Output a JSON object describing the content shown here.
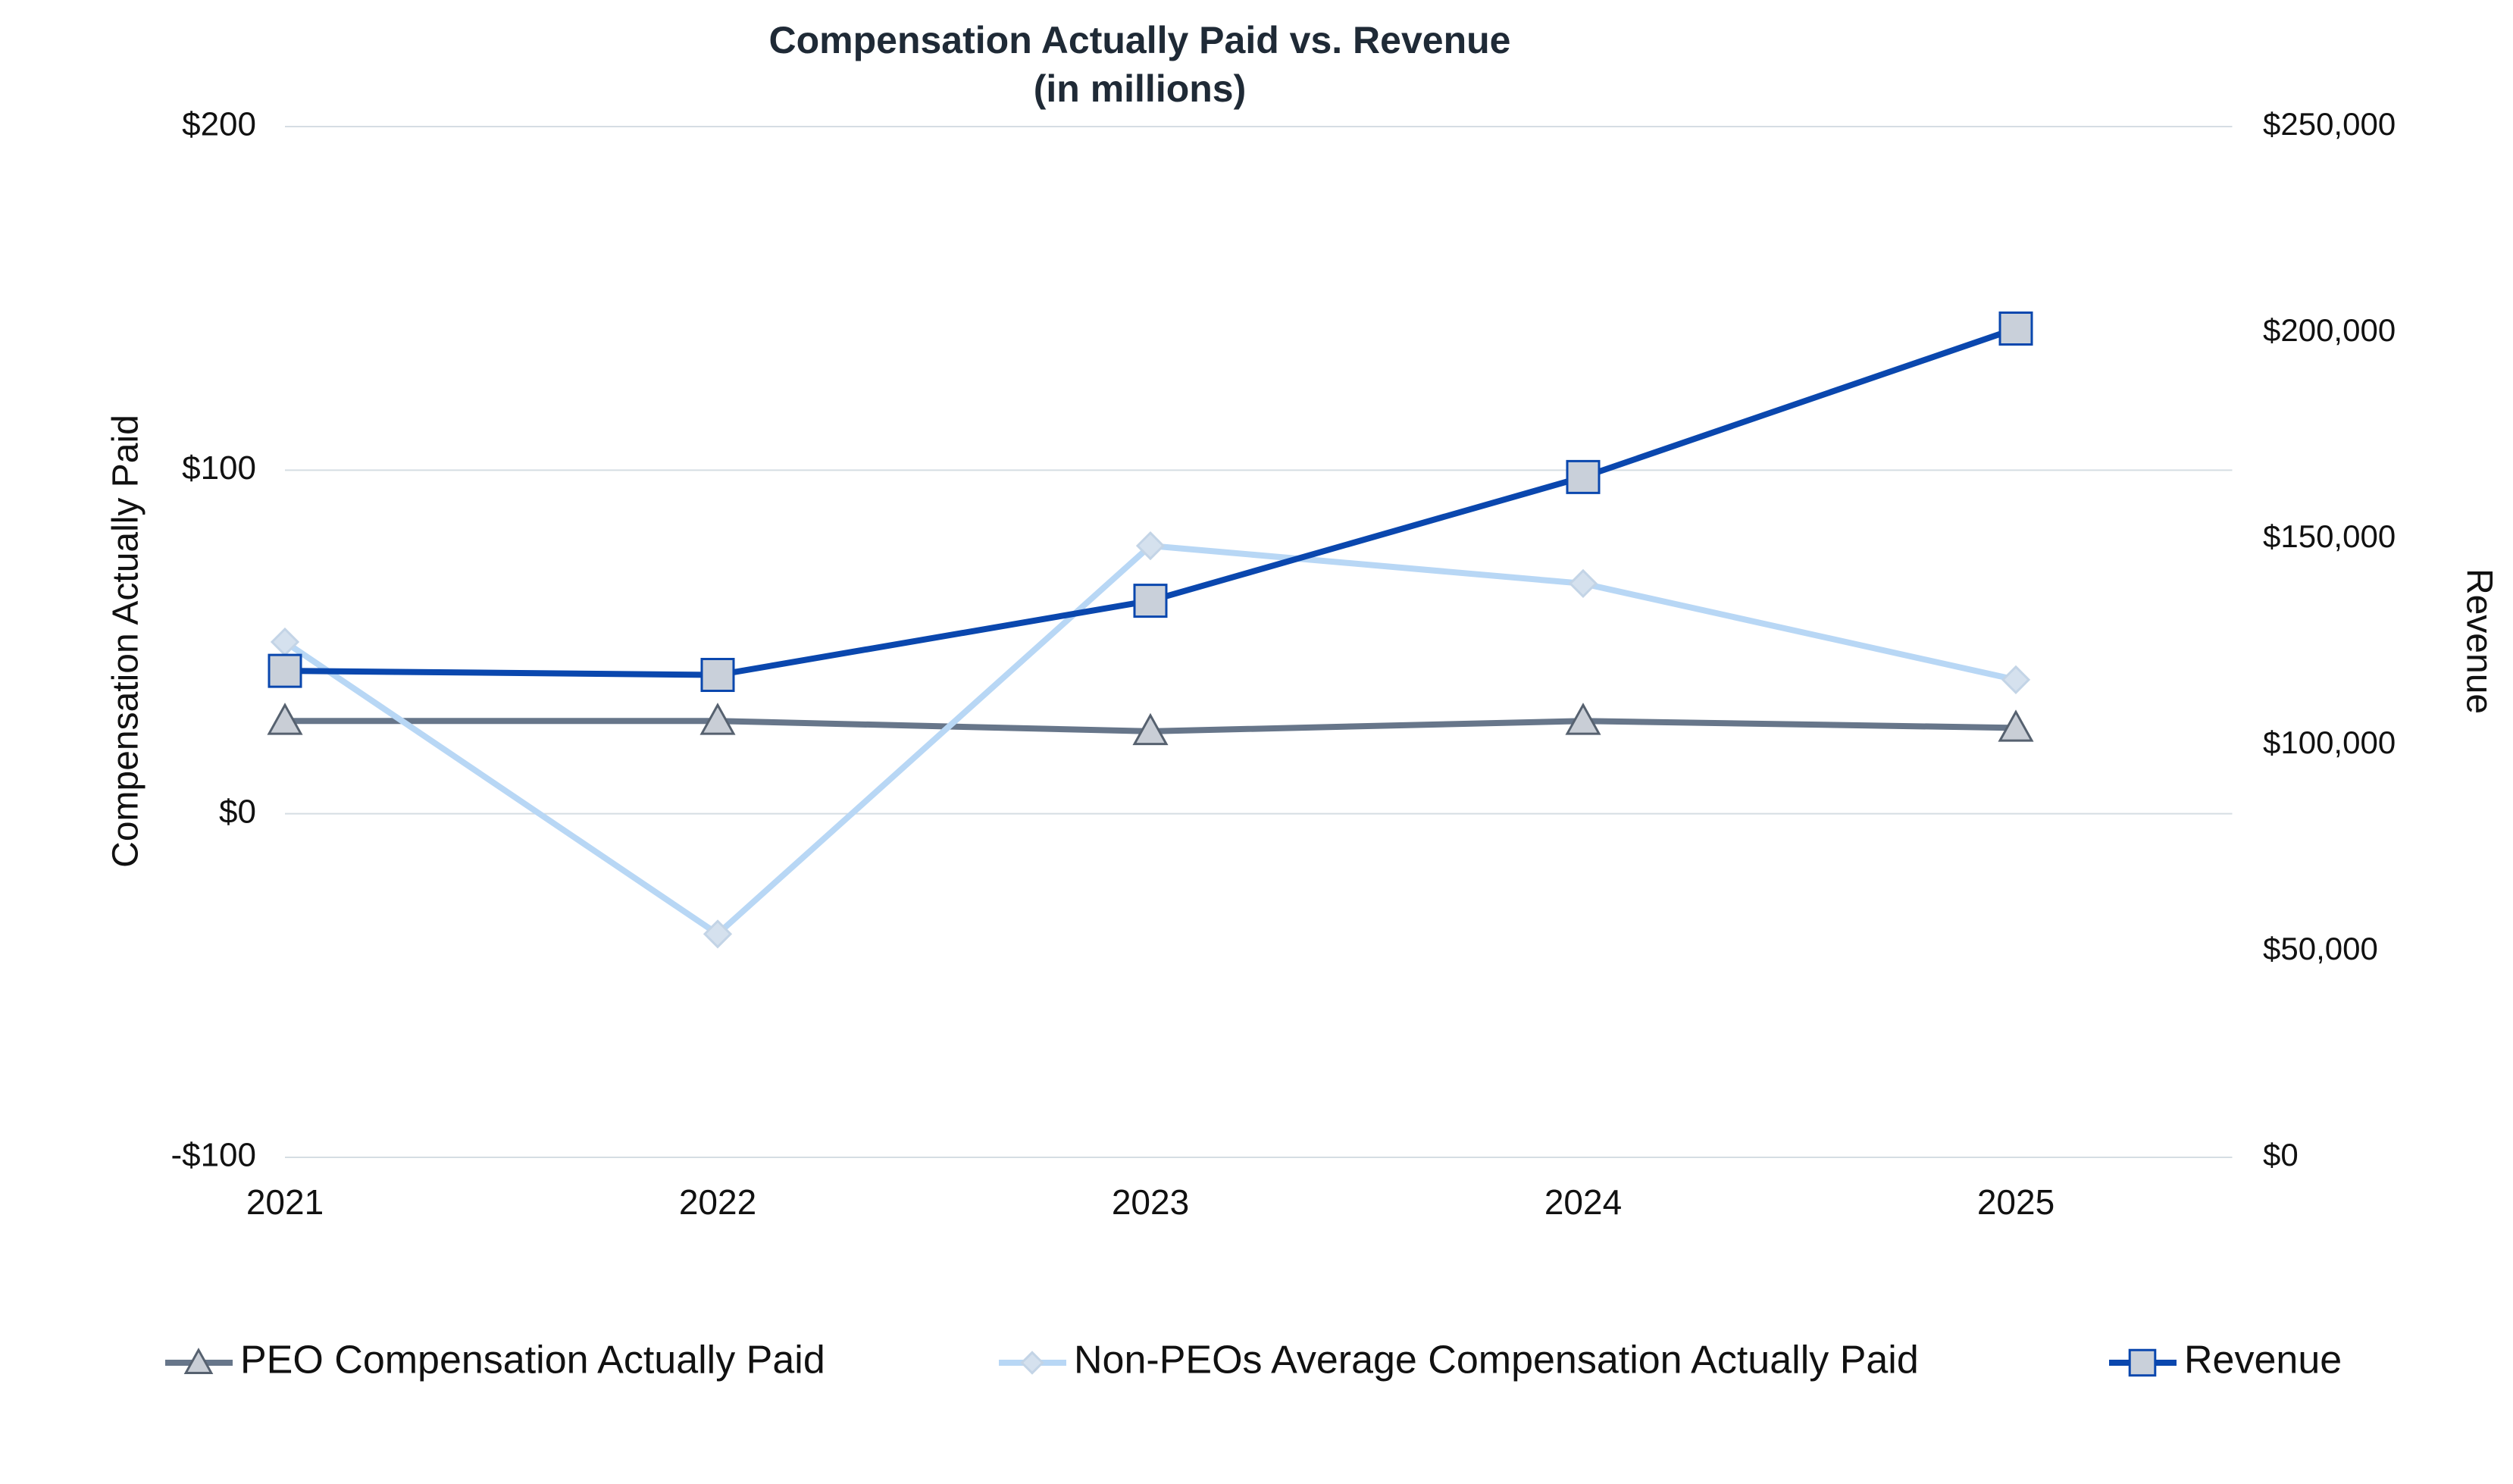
{
  "chart_data": {
    "type": "line",
    "title": "Compensation Actually Paid vs. Revenue",
    "subtitle": "(in millions)",
    "y_label": "Compensation Actually Paid",
    "y2_label": "Revenue",
    "categories": [
      "2021",
      "2022",
      "2023",
      "2024",
      "2025"
    ],
    "series": [
      {
        "name": "PEO Compensation Actually Paid",
        "color": "#67768a",
        "marker": "triangle",
        "marker_color": "#c9ced6",
        "values": [
          27,
          27,
          24,
          27,
          25
        ]
      },
      {
        "name": "Non-PEOs Average Compensation Actually Paid",
        "color": "#b8d7f5",
        "marker": "diamond",
        "marker_color": "#d5e1ee",
        "values": [
          50,
          -35,
          78,
          67,
          39
        ]
      },
      {
        "name": "Revenue",
        "color": "#0a47ae",
        "marker": "square",
        "marker_color": "#c9d0da",
        "axis": "y2",
        "values": [
          118000,
          117000,
          135000,
          165000,
          201000
        ]
      }
    ],
    "ylim": [
      -100,
      200
    ],
    "yticks": [
      {
        "value": -100,
        "label": "-$100"
      },
      {
        "value": 0,
        "label": "$0"
      },
      {
        "value": 100,
        "label": "$100"
      },
      {
        "value": 200,
        "label": "$200"
      }
    ],
    "y2lim": [
      0,
      250000
    ],
    "y2ticks": [
      {
        "value": 0,
        "label": "$0"
      },
      {
        "value": 50000,
        "label": "$50,000"
      },
      {
        "value": 100000,
        "label": "$100,000"
      },
      {
        "value": 150000,
        "label": "$150,000"
      },
      {
        "value": 200000,
        "label": "$200,000"
      },
      {
        "value": 250000,
        "label": "$250,000"
      }
    ],
    "grid": true,
    "legend": "bottom"
  }
}
